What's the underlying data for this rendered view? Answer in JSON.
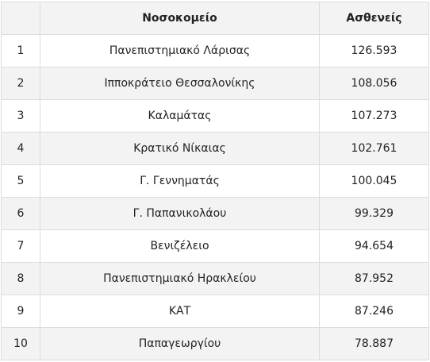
{
  "table": {
    "headers": {
      "rank": "",
      "hospital": "Νοσοκομείο",
      "patients": "Ασθενείς"
    },
    "rows": [
      {
        "rank": "1",
        "hospital": "Πανεπιστημιακό Λάρισας",
        "patients": "126.593"
      },
      {
        "rank": "2",
        "hospital": "Ιπποκράτειο Θεσσαλονίκης",
        "patients": "108.056"
      },
      {
        "rank": "3",
        "hospital": "Καλαμάτας",
        "patients": "107.273"
      },
      {
        "rank": "4",
        "hospital": "Κρατικό Νίκαιας",
        "patients": "102.761"
      },
      {
        "rank": "5",
        "hospital": "Γ. Γεννηματάς",
        "patients": "100.045"
      },
      {
        "rank": "6",
        "hospital": "Γ. Παπανικολάου",
        "patients": "99.329"
      },
      {
        "rank": "7",
        "hospital": "Βενιζέλειο",
        "patients": "94.654"
      },
      {
        "rank": "8",
        "hospital": "Πανεπιστημιακό Ηρακλείου",
        "patients": "87.952"
      },
      {
        "rank": "9",
        "hospital": "ΚΑΤ",
        "patients": "87.246"
      },
      {
        "rank": "10",
        "hospital": "Παπαγεωργίου",
        "patients": "78.887"
      }
    ]
  }
}
